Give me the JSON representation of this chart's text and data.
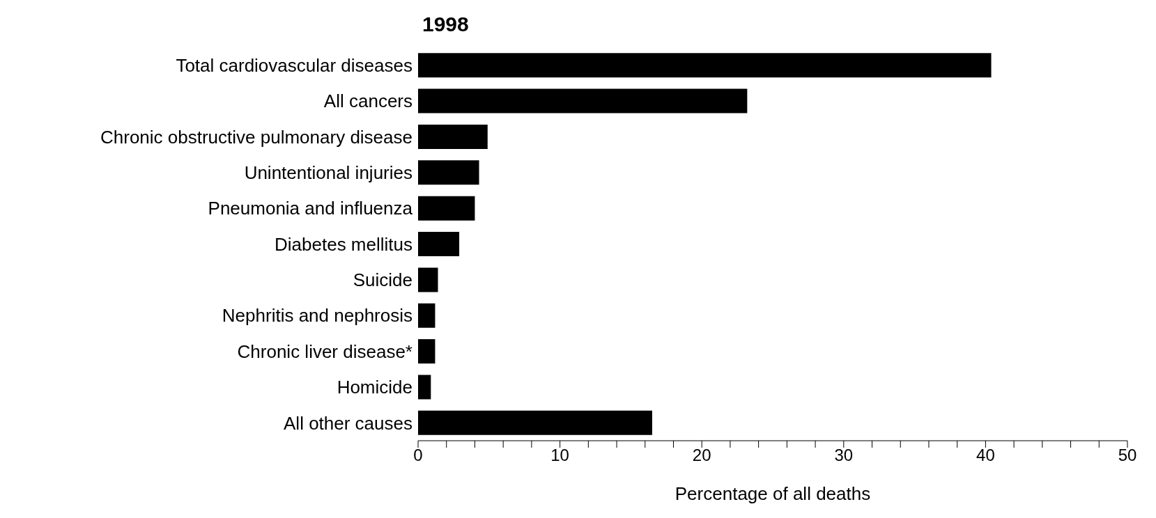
{
  "chart_data": {
    "type": "bar",
    "orientation": "horizontal",
    "title": "1998",
    "xlabel": "Percentage of all deaths",
    "categories": [
      "Total cardiovascular diseases",
      "All cancers",
      "Chronic obstructive pulmonary disease",
      "Unintentional injuries",
      "Pneumonia and influenza",
      "Diabetes mellitus",
      "Suicide",
      "Nephritis and nephrosis",
      "Chronic liver disease*",
      "Homicide",
      "All other causes"
    ],
    "values": [
      40.4,
      23.2,
      4.9,
      4.3,
      4.0,
      2.9,
      1.4,
      1.2,
      1.2,
      0.9,
      16.5
    ],
    "color": "#000000",
    "xlim": [
      0,
      50
    ],
    "xticks": [
      0,
      {
        "value": 2,
        "label": null
      },
      {
        "value": 4,
        "label": null
      },
      {
        "value": 6,
        "label": null
      },
      {
        "value": 8,
        "label": null
      },
      10,
      {
        "value": 12,
        "label": null
      },
      {
        "value": 14,
        "label": null
      },
      {
        "value": 16,
        "label": null
      },
      {
        "value": 18,
        "label": null
      },
      20,
      {
        "value": 22,
        "label": null
      },
      {
        "value": 24,
        "label": null
      },
      {
        "value": 26,
        "label": null
      },
      {
        "value": 28,
        "label": null
      },
      30,
      {
        "value": 32,
        "label": null
      },
      {
        "value": 34,
        "label": null
      },
      {
        "value": 36,
        "label": null
      },
      {
        "value": 38,
        "label": null
      },
      40,
      {
        "value": 42,
        "label": null
      },
      {
        "value": 44,
        "label": null
      },
      {
        "value": 46,
        "label": null
      },
      {
        "value": 48,
        "label": null
      },
      50
    ],
    "grid": false,
    "legend": false
  }
}
